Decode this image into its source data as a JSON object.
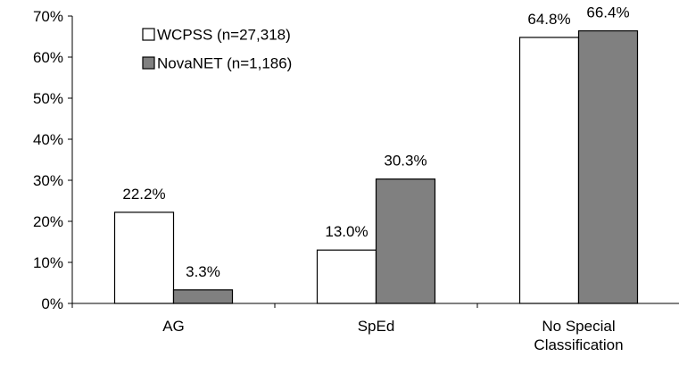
{
  "chart_data": {
    "type": "bar",
    "categories": [
      [
        "AG"
      ],
      [
        "SpEd"
      ],
      [
        "No Special",
        "Classification"
      ]
    ],
    "series": [
      {
        "name": "WCPSS (n=27,318)",
        "values": [
          22.2,
          13.0,
          64.8
        ],
        "labels": [
          "22.2%",
          "13.0%",
          "64.8%"
        ],
        "color": "#ffffff"
      },
      {
        "name": "NovaNET (n=1,186)",
        "values": [
          3.3,
          30.3,
          66.4
        ],
        "labels": [
          "3.3%",
          "30.3%",
          "66.4%"
        ],
        "color": "#808080"
      }
    ],
    "ylim": [
      0,
      70
    ],
    "yticks": [
      0,
      10,
      20,
      30,
      40,
      50,
      60,
      70
    ],
    "ytick_labels": [
      "0%",
      "10%",
      "20%",
      "30%",
      "40%",
      "50%",
      "60%",
      "70%"
    ],
    "grid": false,
    "legend_position": "top-left"
  }
}
